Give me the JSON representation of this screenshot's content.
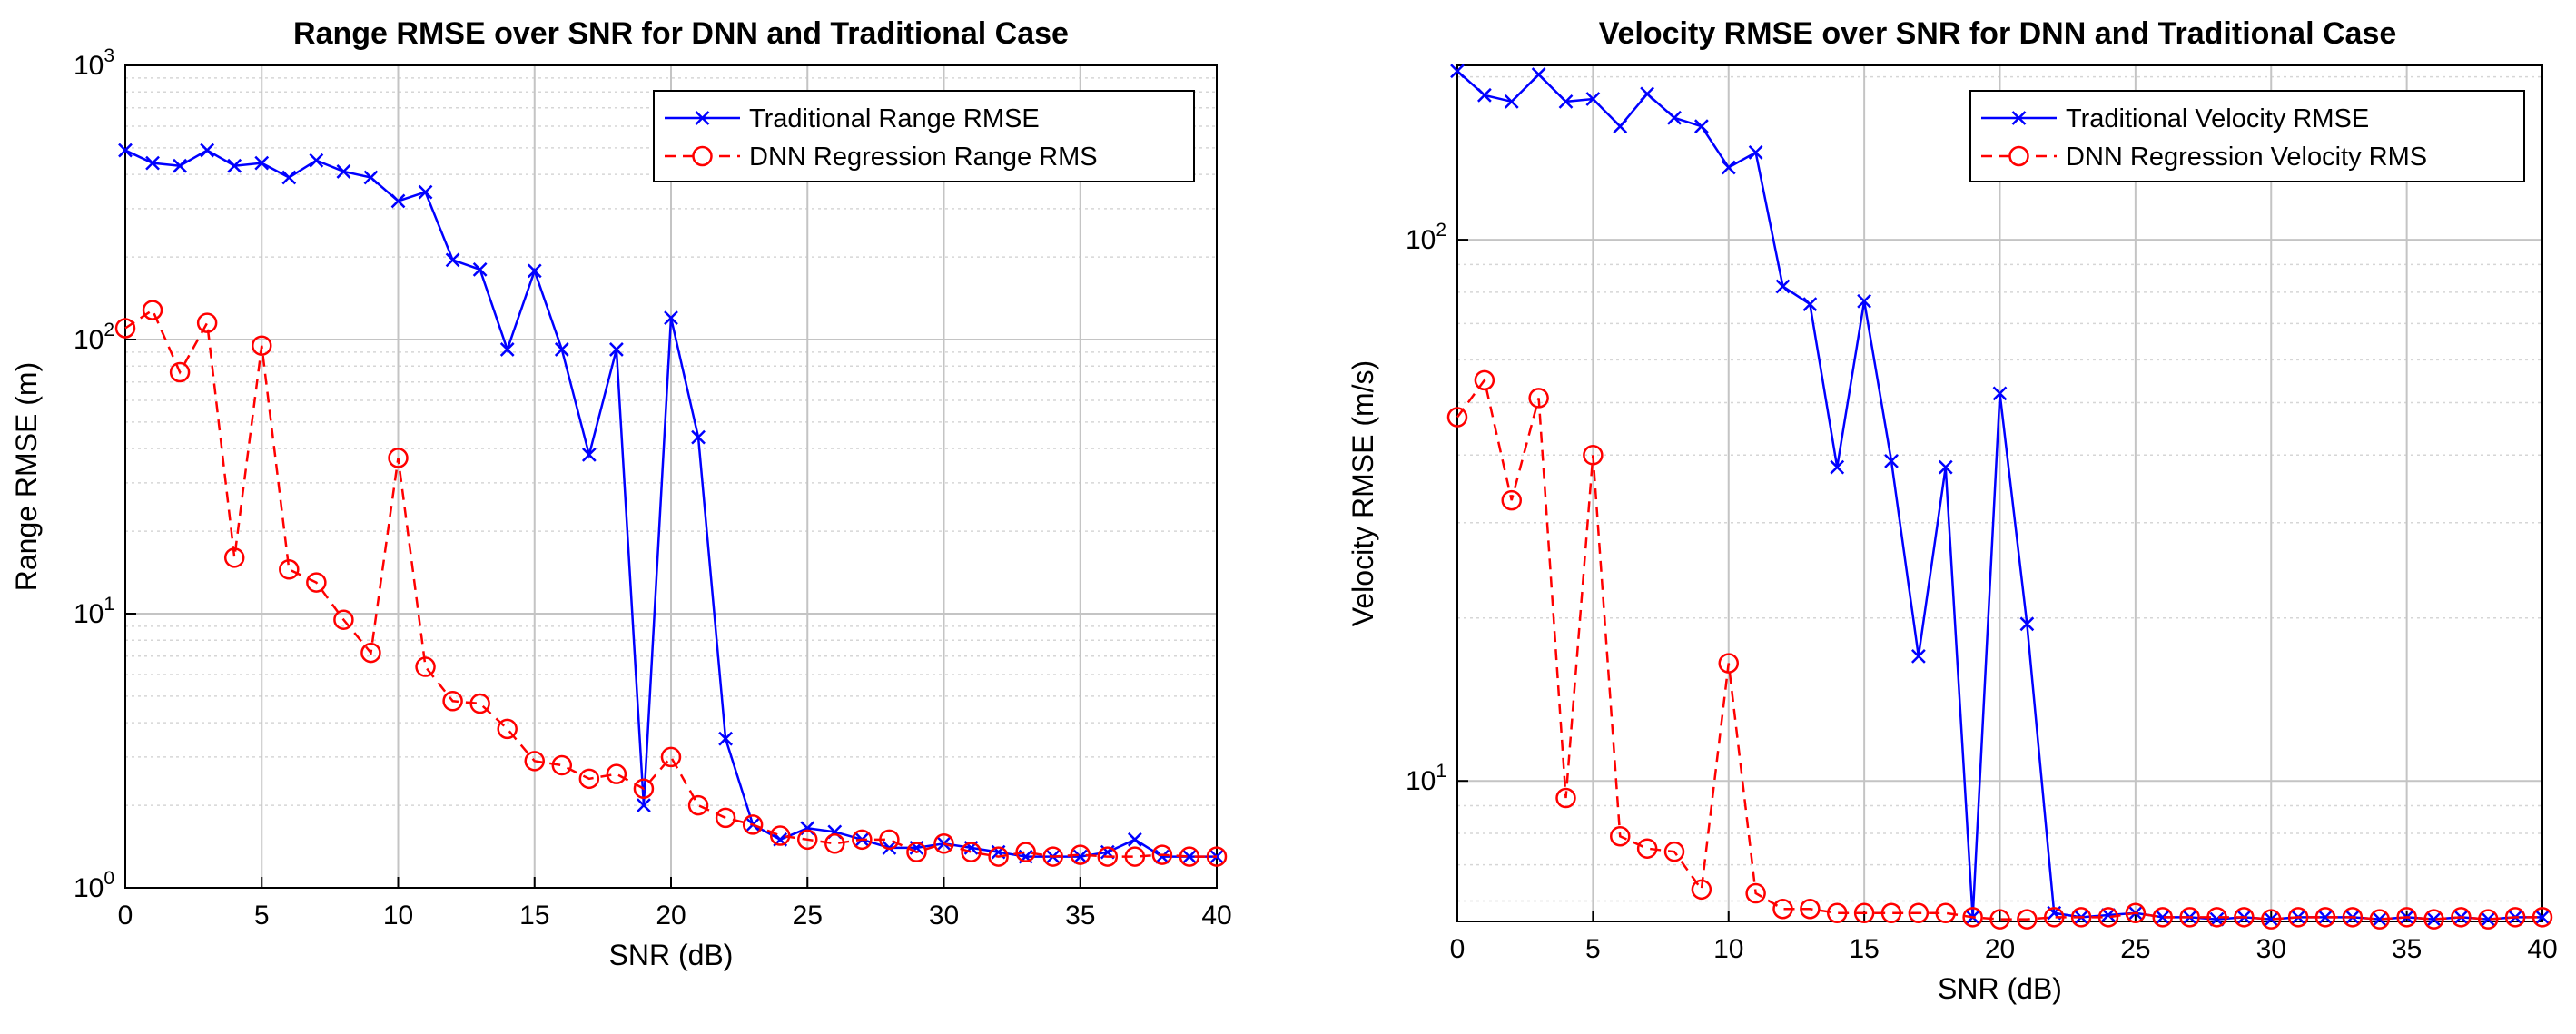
{
  "chart_data": [
    {
      "type": "line",
      "title": "Range RMSE over SNR for DNN and Traditional Case",
      "xlabel": "SNR (dB)",
      "ylabel": "Range RMSE (m)",
      "yscale": "log",
      "xlim": [
        0,
        40
      ],
      "ylim": [
        1,
        1000
      ],
      "xticks": [
        "0",
        "5",
        "10",
        "15",
        "20",
        "25",
        "30",
        "35",
        "40"
      ],
      "yticks": [
        {
          "value": 1,
          "base": "10",
          "exp": "0"
        },
        {
          "value": 10,
          "base": "10",
          "exp": "1"
        },
        {
          "value": 100,
          "base": "10",
          "exp": "2"
        },
        {
          "value": 1000,
          "base": "10",
          "exp": "3"
        }
      ],
      "grid": true,
      "legend_position": "top-right",
      "x": [
        0,
        1,
        2,
        3,
        4,
        5,
        6,
        7,
        8,
        9,
        10,
        11,
        12,
        13,
        14,
        15,
        16,
        17,
        18,
        19,
        20,
        21,
        22,
        23,
        24,
        25,
        26,
        27,
        28,
        29,
        30,
        31,
        32,
        33,
        34,
        35,
        36,
        37,
        38,
        39,
        40
      ],
      "series": [
        {
          "name": "Traditional Range RMSE",
          "color": "#0000ff",
          "marker": "x",
          "linestyle": "solid",
          "values": [
            490,
            440,
            430,
            490,
            430,
            440,
            390,
            450,
            410,
            390,
            320,
            345,
            195,
            180,
            92,
            178,
            92,
            38,
            92,
            2.0,
            120,
            44,
            3.5,
            1.7,
            1.5,
            1.65,
            1.6,
            1.5,
            1.4,
            1.4,
            1.45,
            1.4,
            1.35,
            1.3,
            1.3,
            1.3,
            1.35,
            1.5,
            1.3,
            1.3,
            1.3
          ]
        },
        {
          "name": "DNN Regression Range RMS",
          "color": "#ff0000",
          "marker": "o",
          "linestyle": "dashed",
          "values": [
            110,
            128,
            76,
            115,
            16,
            95,
            14.5,
            13,
            9.5,
            7.2,
            37,
            6.4,
            4.8,
            4.7,
            3.8,
            2.9,
            2.8,
            2.5,
            2.6,
            2.3,
            3.0,
            2.0,
            1.8,
            1.7,
            1.55,
            1.5,
            1.45,
            1.5,
            1.5,
            1.35,
            1.45,
            1.35,
            1.3,
            1.35,
            1.3,
            1.32,
            1.3,
            1.3,
            1.32,
            1.3,
            1.3
          ]
        }
      ]
    },
    {
      "type": "line",
      "title": "Velocity RMSE over SNR for DNN and Traditional Case",
      "xlabel": "SNR (dB)",
      "ylabel": "Velocity RMSE (m/s)",
      "yscale": "log",
      "xlim": [
        0,
        40
      ],
      "ylim": [
        5.5,
        210
      ],
      "xticks": [
        "0",
        "5",
        "10",
        "15",
        "20",
        "25",
        "30",
        "35",
        "40"
      ],
      "yticks": [
        {
          "value": 10,
          "base": "10",
          "exp": "1"
        },
        {
          "value": 100,
          "base": "10",
          "exp": "2"
        }
      ],
      "grid": true,
      "legend_position": "top-right",
      "x": [
        0,
        1,
        2,
        3,
        4,
        5,
        6,
        7,
        8,
        9,
        10,
        11,
        12,
        13,
        14,
        15,
        16,
        17,
        18,
        19,
        20,
        21,
        22,
        23,
        24,
        25,
        26,
        27,
        28,
        29,
        30,
        31,
        32,
        33,
        34,
        35,
        36,
        37,
        38,
        39,
        40
      ],
      "series": [
        {
          "name": "Traditional Velocity RMSE",
          "color": "#0000ff",
          "marker": "x",
          "linestyle": "solid",
          "values": [
            205,
            185,
            180,
            202,
            180,
            182,
            162,
            186,
            168,
            162,
            136,
            145,
            82,
            76,
            38,
            77,
            39,
            17,
            38,
            5.6,
            52,
            19.5,
            5.7,
            5.6,
            5.65,
            5.7,
            5.6,
            5.6,
            5.55,
            5.6,
            5.55,
            5.6,
            5.6,
            5.6,
            5.55,
            5.6,
            5.55,
            5.6,
            5.55,
            5.6,
            5.6
          ]
        },
        {
          "name": "DNN Regression Velocity RMS",
          "color": "#ff0000",
          "marker": "o",
          "linestyle": "dashed",
          "values": [
            47,
            55,
            33,
            51,
            9.3,
            40,
            7.9,
            7.5,
            7.4,
            6.3,
            16.5,
            6.2,
            5.8,
            5.8,
            5.7,
            5.7,
            5.7,
            5.7,
            5.7,
            5.6,
            5.55,
            5.55,
            5.6,
            5.6,
            5.6,
            5.7,
            5.6,
            5.6,
            5.6,
            5.6,
            5.55,
            5.6,
            5.6,
            5.6,
            5.55,
            5.6,
            5.55,
            5.6,
            5.55,
            5.6,
            5.6
          ]
        }
      ]
    }
  ]
}
